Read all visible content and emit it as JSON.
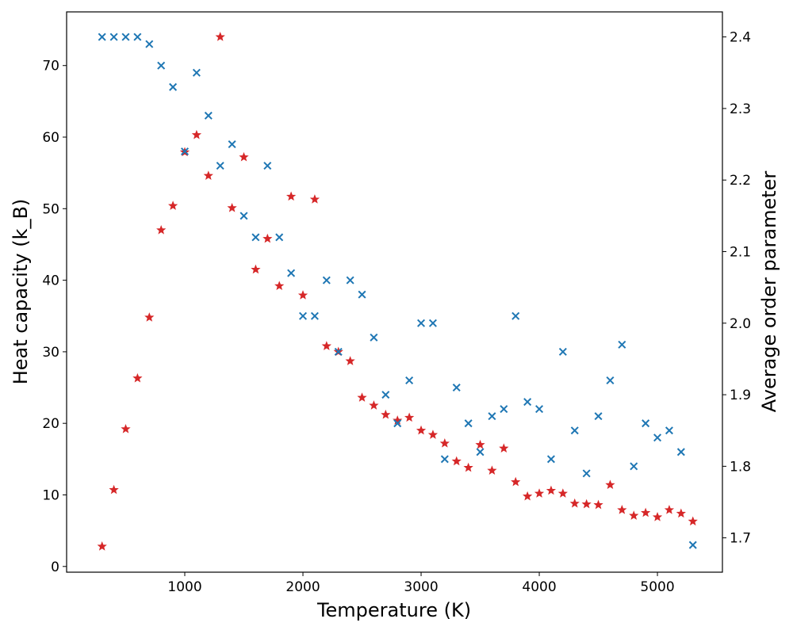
{
  "chart_data": {
    "type": "scatter",
    "title": "",
    "xlabel": "Temperature (K)",
    "ylabel": "Heat capacity (k_B)",
    "y2label": "Average order parameter",
    "xlim": [
      0,
      5550
    ],
    "ylim": [
      -0.8,
      77.5
    ],
    "y2lim": [
      1.652,
      2.435
    ],
    "x_ticks": [
      1000,
      2000,
      3000,
      4000,
      5000
    ],
    "y_ticks": [
      0,
      10,
      20,
      30,
      40,
      50,
      60,
      70
    ],
    "y2_ticks": [
      1.7,
      1.8,
      1.9,
      2.0,
      2.1,
      2.2,
      2.3,
      2.4
    ],
    "grid": false,
    "legend": "none",
    "series": [
      {
        "axis": "left",
        "marker": "star",
        "color": "#d62728",
        "x": [
          300,
          400,
          500,
          600,
          700,
          800,
          900,
          1000,
          1100,
          1200,
          1300,
          1400,
          1500,
          1600,
          1700,
          1800,
          1900,
          2000,
          2100,
          2200,
          2300,
          2400,
          2500,
          2600,
          2700,
          2800,
          2900,
          3000,
          3100,
          3200,
          3300,
          3400,
          3500,
          3600,
          3700,
          3800,
          3900,
          4000,
          4100,
          4200,
          4300,
          4400,
          4500,
          4600,
          4700,
          4800,
          4900,
          5000,
          5100,
          5200,
          5300
        ],
        "y": [
          2.8,
          10.7,
          19.2,
          26.3,
          34.8,
          47.0,
          50.4,
          57.9,
          60.3,
          54.6,
          74.0,
          50.1,
          57.2,
          41.5,
          45.8,
          39.2,
          51.7,
          37.9,
          51.3,
          30.8,
          30.0,
          28.7,
          23.6,
          22.5,
          21.2,
          20.4,
          20.8,
          19.0,
          18.4,
          17.2,
          14.7,
          13.8,
          17.0,
          13.4,
          16.5,
          11.8,
          9.8,
          10.2,
          10.6,
          10.2,
          8.8,
          8.7,
          8.6,
          11.4,
          7.9,
          7.1,
          7.5,
          6.9,
          7.9,
          7.4,
          6.3
        ]
      },
      {
        "axis": "right",
        "marker": "x",
        "color": "#1f77b4",
        "x": [
          300,
          400,
          500,
          600,
          700,
          800,
          900,
          1000,
          1100,
          1200,
          1300,
          1400,
          1500,
          1600,
          1700,
          1800,
          1900,
          2000,
          2100,
          2200,
          2300,
          2400,
          2500,
          2600,
          2700,
          2800,
          2900,
          3000,
          3100,
          3200,
          3300,
          3400,
          3500,
          3600,
          3700,
          3800,
          3900,
          4000,
          4100,
          4200,
          4300,
          4400,
          4500,
          4600,
          4700,
          4800,
          4900,
          5000,
          5100,
          5200,
          5300
        ],
        "y": [
          2.4,
          2.4,
          2.4,
          2.4,
          2.39,
          2.36,
          2.33,
          2.24,
          2.35,
          2.29,
          2.22,
          2.25,
          2.15,
          2.12,
          2.22,
          2.12,
          2.07,
          2.01,
          2.01,
          2.06,
          1.96,
          2.06,
          2.04,
          1.98,
          1.9,
          1.86,
          1.92,
          2.0,
          2.0,
          1.81,
          1.91,
          1.86,
          1.82,
          1.87,
          1.88,
          2.01,
          1.89,
          1.88,
          1.81,
          1.96,
          1.85,
          1.79,
          1.87,
          1.92,
          1.97,
          1.8,
          1.86,
          1.84,
          1.85,
          1.82,
          1.69
        ]
      }
    ]
  }
}
